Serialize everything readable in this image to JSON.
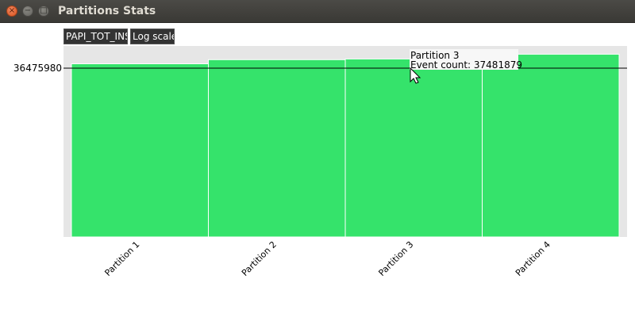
{
  "window": {
    "title": "Partitions Stats",
    "close_glyph": "×",
    "min_glyph": "−",
    "max_glyph": "□"
  },
  "toolbar": {
    "counter_label": "PAPI_TOT_INS",
    "log_scale_label": "Log scale"
  },
  "chart_data": {
    "type": "bar",
    "title": "",
    "xlabel": "",
    "ylabel": "",
    "categories": [
      "Partition 1",
      "Partition 2",
      "Partition 3",
      "Partition 4"
    ],
    "values": [
      36950000,
      37400000,
      37481879,
      38000000
    ],
    "ylim": [
      18000000,
      38900000
    ],
    "reference_line": {
      "value": 36475980,
      "label": "36475980"
    },
    "bar_color": "#35e36b",
    "plot_background": "#e6e6e6",
    "grid": false,
    "legend": "none"
  },
  "tooltip": {
    "line1": "Partition 3",
    "line2": "Event count: 37481879"
  }
}
